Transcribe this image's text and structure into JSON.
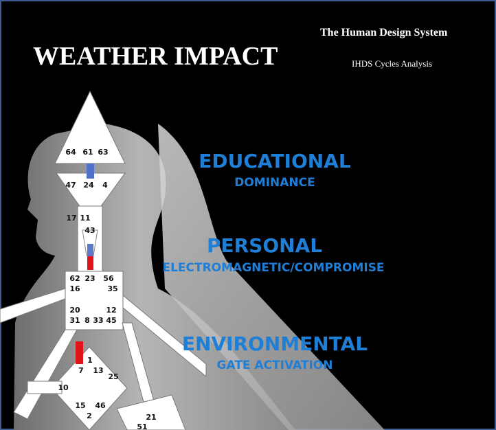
{
  "header": {
    "title": "WEATHER IMPACT",
    "system": "The Human Design System",
    "subtitle": "IHDS Cycles Analysis"
  },
  "sections": [
    {
      "heading": "EDUCATIONAL",
      "subheading": "DOMINANCE"
    },
    {
      "heading": "PERSONAL",
      "subheading": "ELECTROMAGNETIC/COMPROMISE"
    },
    {
      "heading": "ENVIRONMENTAL",
      "subheading": "GATE ACTIVATION"
    }
  ],
  "gates": [
    "64",
    "61",
    "63",
    "47",
    "24",
    "4",
    "17",
    "11",
    "43",
    "62",
    "23",
    "56",
    "16",
    "35",
    "20",
    "12",
    "31",
    "8",
    "33",
    "45",
    "1",
    "7",
    "13",
    "10",
    "25",
    "15",
    "46",
    "2",
    "21",
    "51"
  ]
}
